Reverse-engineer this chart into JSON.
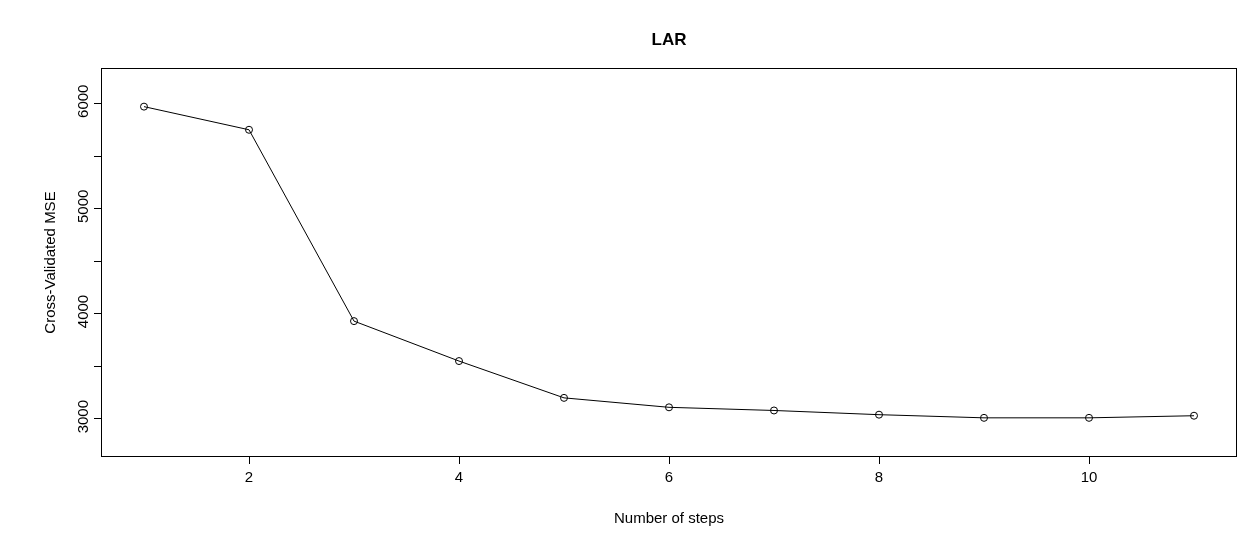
{
  "chart_data": {
    "type": "line",
    "title": "LAR",
    "xlabel": "Number of steps",
    "ylabel": "Cross-Validated MSE",
    "x": [
      1,
      2,
      3,
      4,
      5,
      6,
      7,
      8,
      9,
      10,
      11
    ],
    "series": [
      {
        "color": "#000000",
        "values": [
          5970,
          5750,
          3930,
          3550,
          3200,
          3110,
          3080,
          3040,
          3010,
          3010,
          3030
        ]
      }
    ],
    "xlim": [
      0.6,
      11.4
    ],
    "xticks": [
      2,
      4,
      6,
      8,
      10
    ],
    "ylim": [
      2647,
      6328
    ],
    "yticks": [
      3000,
      {
        "value": 3500,
        "label": null
      },
      4000,
      {
        "value": 4500,
        "label": null
      },
      5000,
      {
        "value": 5500,
        "label": null
      },
      6000
    ],
    "marker": "circle",
    "line_style": "solid"
  }
}
